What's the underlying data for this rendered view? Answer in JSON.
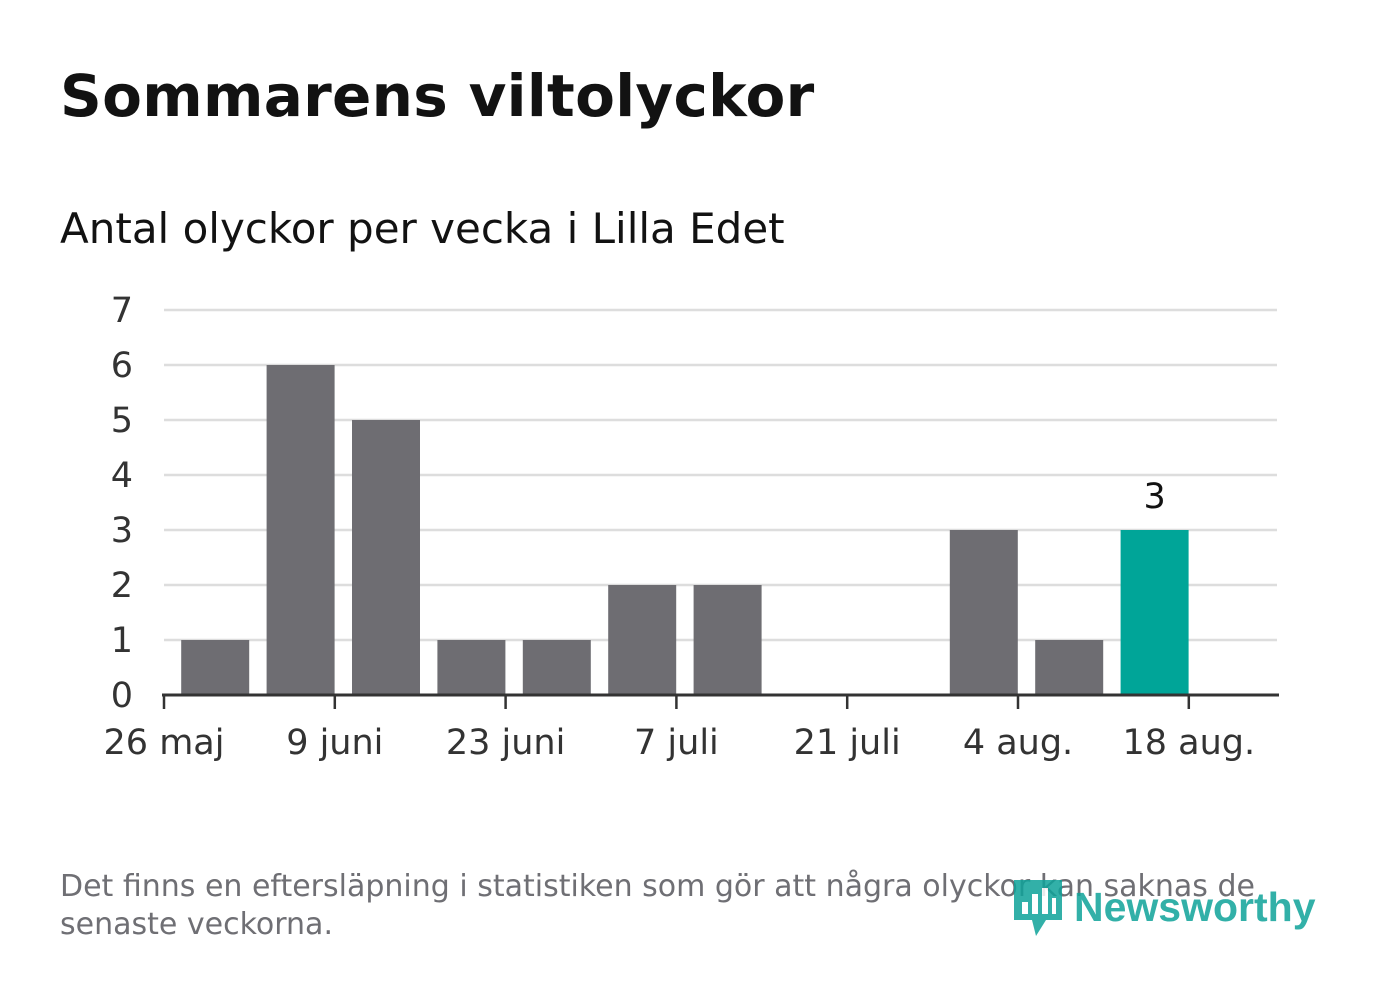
{
  "title": "Sommarens viltolyckor",
  "subtitle": "Antal olyckor per vecka i Lilla Edet",
  "footnote": "Det finns en eftersläpning i statistiken som gör att några olyckor kan saknas de senaste veckorna.",
  "logo": {
    "text": "Newsworthy",
    "icon": "newsworthy-logo-icon",
    "color": "#0fa39a"
  },
  "colors": {
    "bar": "#6e6d72",
    "highlight": "#00a598",
    "grid": "#dddddd",
    "axis": "#333333"
  },
  "chart_data": {
    "type": "bar",
    "x": [
      "2025-05-26",
      "2025-06-02",
      "2025-06-09",
      "2025-06-16",
      "2025-06-23",
      "2025-06-30",
      "2025-07-07",
      "2025-07-14",
      "2025-07-21",
      "2025-07-28",
      "2025-08-04",
      "2025-08-11",
      "2025-08-18"
    ],
    "values": [
      0,
      1,
      6,
      5,
      1,
      1,
      2,
      2,
      0,
      0,
      3,
      1,
      3
    ],
    "highlight_index": 12,
    "data_labels": [
      {
        "index": 12,
        "text": "3"
      }
    ],
    "xticks": [
      {
        "index": 0,
        "label": "26 maj"
      },
      {
        "index": 2,
        "label": "9 juni"
      },
      {
        "index": 4,
        "label": "23 juni"
      },
      {
        "index": 6,
        "label": "7 juli"
      },
      {
        "index": 8,
        "label": "21 juli"
      },
      {
        "index": 10,
        "label": "4 aug."
      },
      {
        "index": 12,
        "label": "18 aug."
      }
    ],
    "yticks": [
      0,
      1,
      2,
      3,
      4,
      5,
      6,
      7
    ],
    "ylim": [
      0,
      7
    ],
    "grid": true,
    "legend": "none"
  }
}
